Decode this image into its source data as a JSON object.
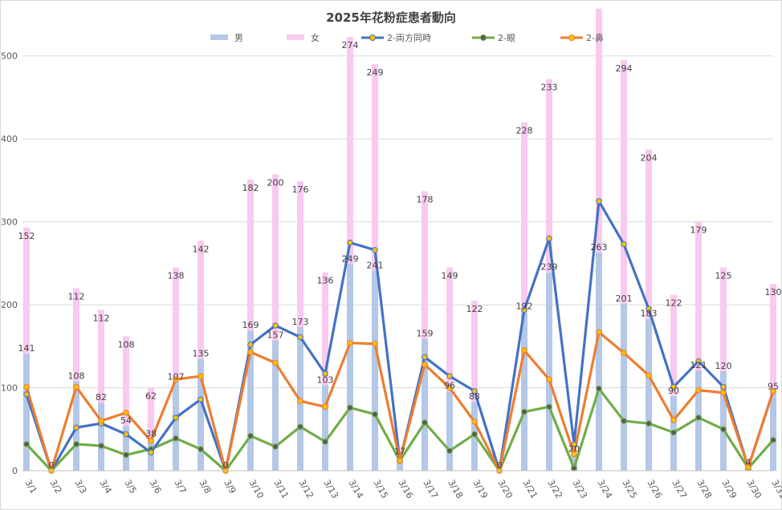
{
  "chart_data": {
    "type": "bar",
    "title": "2025年花粉症患者動向",
    "categories": [
      "3/1",
      "3/2",
      "3/3",
      "3/4",
      "3/5",
      "3/6",
      "3/7",
      "3/8",
      "3/9",
      "3/10",
      "3/11",
      "3/12",
      "3/13",
      "3/14",
      "3/15",
      "3/16",
      "3/17",
      "3/18",
      "3/19",
      "3/20",
      "3/21",
      "3/22",
      "3/23",
      "3/24",
      "3/25",
      "3/26",
      "3/27",
      "3/28",
      "3/29",
      "3/30",
      "3/31"
    ],
    "ylim": [
      0,
      550
    ],
    "yticks": [
      0,
      100,
      200,
      300,
      400,
      500
    ],
    "grid": true,
    "legend": "top",
    "stacked_bars": true,
    "series": [
      {
        "name": "男",
        "kind": "bar",
        "color": "#b4c7e7",
        "values": [
          141,
          0,
          108,
          82,
          54,
          38,
          107,
          135,
          0,
          169,
          157,
          173,
          103,
          249,
          241,
          17,
          159,
          96,
          83,
          0,
          192,
          239,
          20,
          263,
          201,
          183,
          90,
          121,
          120,
          4,
          95
        ],
        "labels": [
          "141",
          "0",
          "108",
          "82",
          "54",
          "38",
          "107",
          "135",
          "0",
          "169",
          "157",
          "173",
          "103",
          "249",
          "241",
          "17",
          "159",
          "96",
          "83",
          "0",
          "192",
          "239",
          "20",
          "263",
          "201",
          "183",
          "90",
          "121",
          "120",
          "4",
          "95"
        ]
      },
      {
        "name": "女",
        "kind": "bar",
        "color": "#f9c9ef",
        "values": [
          152,
          0,
          112,
          112,
          108,
          62,
          138,
          142,
          0,
          182,
          200,
          176,
          136,
          274,
          249,
          0,
          178,
          149,
          122,
          0,
          228,
          233,
          0,
          294,
          294,
          204,
          122,
          179,
          125,
          0,
          130
        ],
        "labels": [
          "152",
          "",
          "112",
          "112",
          "108",
          "62",
          "138",
          "142",
          "",
          "182",
          "200",
          "176",
          "136",
          "274",
          "249",
          "",
          "178",
          "149",
          "122",
          "",
          "228",
          "233",
          "",
          "",
          "294",
          "204",
          "122",
          "179",
          "125",
          "",
          "130"
        ]
      },
      {
        "name": "2-両方同時",
        "kind": "line",
        "color": "#4472c4",
        "marker": "#ffc000",
        "values": [
          92,
          0,
          52,
          57,
          44,
          22,
          64,
          86,
          0,
          152,
          175,
          161,
          117,
          275,
          266,
          12,
          137,
          114,
          96,
          0,
          194,
          280,
          32,
          325,
          273,
          195,
          101,
          132,
          101,
          4,
          96
        ]
      },
      {
        "name": "2-眼",
        "kind": "line",
        "color": "#70ad47",
        "marker": "#595959",
        "values": [
          32,
          0,
          32,
          30,
          19,
          26,
          39,
          26,
          0,
          42,
          29,
          53,
          35,
          76,
          68,
          12,
          58,
          24,
          44,
          0,
          71,
          77,
          3,
          99,
          60,
          57,
          46,
          64,
          50,
          3,
          37
        ]
      },
      {
        "name": "2-鼻",
        "kind": "line",
        "color": "#ed7d31",
        "marker": "#ffc000",
        "values": [
          101,
          0,
          101,
          60,
          70,
          36,
          110,
          114,
          0,
          143,
          130,
          84,
          77,
          154,
          153,
          12,
          128,
          100,
          59,
          0,
          145,
          110,
          20,
          167,
          142,
          115,
          61,
          97,
          94,
          4,
          96
        ]
      }
    ]
  }
}
